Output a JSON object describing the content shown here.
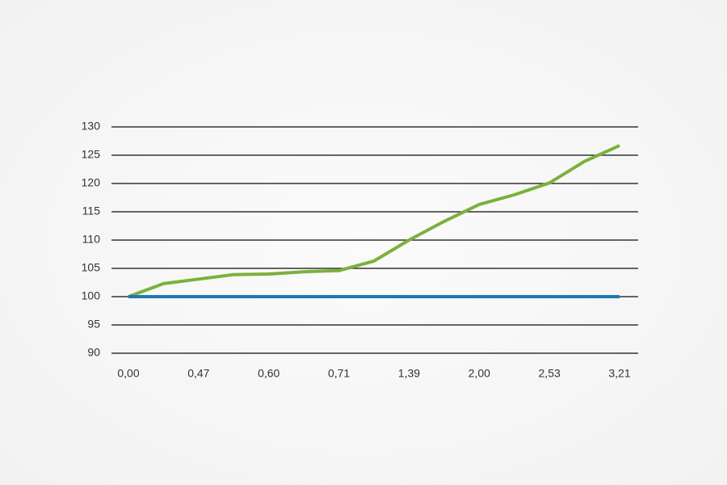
{
  "chart_data": {
    "type": "line",
    "categories": [
      "0,00",
      null,
      "0,47",
      null,
      "0,60",
      null,
      "0,71",
      null,
      "1,39",
      null,
      "2,00",
      null,
      "2,53",
      null,
      "3,21"
    ],
    "series": [
      {
        "color": "#7bb13c",
        "values": [
          100,
          102.3,
          103.1,
          103.9,
          104,
          104.4,
          104.6,
          106.3,
          110,
          113.3,
          116.3,
          118,
          120.1,
          123.9,
          126.7
        ]
      },
      {
        "color": "#1f77b4",
        "values": [
          100,
          100,
          100,
          100,
          100,
          100,
          100,
          100,
          100,
          100,
          100,
          100,
          100,
          100,
          100
        ]
      }
    ],
    "ylim": [
      90,
      130
    ],
    "yticks": [
      90,
      95,
      100,
      105,
      110,
      115,
      120,
      125,
      130
    ],
    "grid": true
  }
}
